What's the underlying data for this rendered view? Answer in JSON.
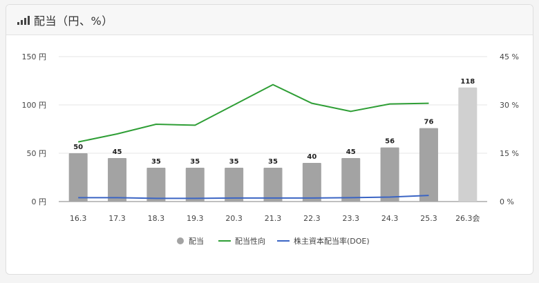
{
  "header": {
    "title": "配当（円、%）",
    "icon": "bar-chart-icon"
  },
  "chart_data": {
    "type": "bar",
    "categories": [
      "16.3",
      "17.3",
      "18.3",
      "19.3",
      "20.3",
      "21.3",
      "22.3",
      "23.3",
      "24.3",
      "25.3",
      "26.3会"
    ],
    "left_axis": {
      "ticks": [
        "0 円",
        "50 円",
        "100 円",
        "150 円"
      ],
      "ylim": [
        0,
        150
      ]
    },
    "right_axis": {
      "ticks": [
        "0 %",
        "15 %",
        "30 %",
        "45 %"
      ],
      "ylim": [
        0,
        45
      ]
    },
    "grid": true,
    "legend_position": "bottom",
    "series": [
      {
        "name": "配当",
        "type": "bar",
        "axis": "left",
        "color": "#a3a3a3",
        "values": [
          50,
          45,
          35,
          35,
          35,
          35,
          40,
          45,
          56,
          76,
          118
        ],
        "labels": [
          "50",
          "45",
          "35",
          "35",
          "35",
          "35",
          "40",
          "45",
          "56",
          "76",
          "118"
        ],
        "forecast_color": "#d0d0d0"
      },
      {
        "name": "配当性向",
        "type": "line",
        "axis": "right",
        "color": "#2e9e35",
        "values": [
          18.5,
          21.0,
          24.0,
          23.7,
          30.0,
          36.3,
          30.5,
          28.0,
          30.3,
          30.5,
          null
        ]
      },
      {
        "name": "株主資本配当率(DOE)",
        "type": "line",
        "axis": "right",
        "color": "#3a64c4",
        "values": [
          1.2,
          1.2,
          1.0,
          1.0,
          1.1,
          1.1,
          1.1,
          1.2,
          1.4,
          1.9,
          null
        ]
      }
    ]
  }
}
